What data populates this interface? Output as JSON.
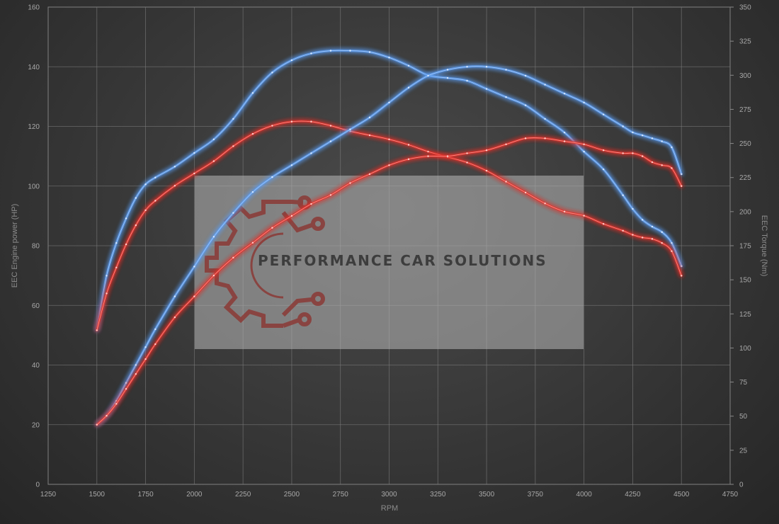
{
  "chart_data": {
    "type": "line",
    "xlabel": "RPM",
    "ylabel": "EEC Engine power (HP)",
    "y2label": "EEC Torque (Nm)",
    "xlim": [
      1250,
      4750
    ],
    "ylim": [
      0,
      160
    ],
    "y2lim": [
      0,
      350
    ],
    "x_ticks": [
      1250,
      1500,
      1750,
      2000,
      2250,
      2500,
      2750,
      3000,
      3250,
      3500,
      3750,
      4000,
      4250,
      4500,
      4750
    ],
    "y_ticks": [
      0,
      20,
      40,
      60,
      80,
      100,
      120,
      140,
      160
    ],
    "y2_ticks": [
      0,
      25,
      50,
      75,
      100,
      125,
      150,
      175,
      200,
      225,
      250,
      275,
      300,
      325,
      350
    ],
    "grid": true,
    "series": [
      {
        "axis": "right",
        "color": "#5b9cf0",
        "x": [
          1500,
          1550,
          1600,
          1650,
          1700,
          1750,
          1800,
          1900,
          2000,
          2100,
          2200,
          2300,
          2400,
          2500,
          2600,
          2700,
          2800,
          2900,
          3000,
          3100,
          3200,
          3300,
          3400,
          3500,
          3600,
          3700,
          3800,
          3900,
          4000,
          4100,
          4200,
          4250,
          4300,
          4350,
          4400,
          4450,
          4500
        ],
        "values": [
          113,
          153,
          177,
          195,
          210,
          220,
          225,
          233,
          243,
          253,
          268,
          287,
          302,
          311,
          316,
          318,
          318,
          317,
          313,
          307,
          300,
          298,
          296,
          290,
          284,
          278,
          268,
          258,
          244,
          231,
          212,
          202,
          194,
          189,
          185,
          177,
          160
        ]
      },
      {
        "axis": "right",
        "color": "#e0302c",
        "x": [
          1500,
          1550,
          1600,
          1650,
          1700,
          1750,
          1800,
          1900,
          2000,
          2100,
          2200,
          2300,
          2400,
          2500,
          2600,
          2700,
          2800,
          2900,
          3000,
          3100,
          3200,
          3300,
          3400,
          3500,
          3600,
          3700,
          3800,
          3900,
          4000,
          4100,
          4200,
          4250,
          4300,
          4350,
          4400,
          4450,
          4500
        ],
        "values": [
          113,
          140,
          159,
          176,
          190,
          201,
          208,
          219,
          228,
          237,
          248,
          257,
          263,
          266,
          266,
          263,
          259,
          256,
          253,
          249,
          244,
          240,
          236,
          230,
          222,
          214,
          206,
          200,
          197,
          191,
          186,
          183,
          181,
          180,
          177,
          171,
          153
        ]
      },
      {
        "axis": "left",
        "color": "#5b9cf0",
        "x": [
          1500,
          1550,
          1600,
          1650,
          1700,
          1750,
          1800,
          1900,
          2000,
          2100,
          2200,
          2300,
          2400,
          2500,
          2600,
          2700,
          2800,
          2900,
          3000,
          3100,
          3200,
          3300,
          3400,
          3500,
          3600,
          3700,
          3800,
          3900,
          4000,
          4100,
          4200,
          4250,
          4300,
          4350,
          4400,
          4450,
          4500
        ],
        "values": [
          20,
          23,
          28,
          34,
          40,
          46,
          52,
          63,
          73,
          83,
          91,
          98,
          103,
          107,
          111,
          115,
          119,
          123,
          128,
          133,
          137,
          139,
          140,
          140,
          139,
          137,
          134,
          131,
          128,
          124,
          120,
          118,
          117,
          116,
          115,
          113,
          104
        ]
      },
      {
        "axis": "left",
        "color": "#e0302c",
        "x": [
          1500,
          1550,
          1600,
          1650,
          1700,
          1750,
          1800,
          1900,
          2000,
          2100,
          2200,
          2300,
          2400,
          2500,
          2600,
          2700,
          2800,
          2900,
          3000,
          3100,
          3200,
          3300,
          3400,
          3500,
          3600,
          3700,
          3800,
          3900,
          4000,
          4100,
          4200,
          4250,
          4300,
          4350,
          4400,
          4450,
          4500
        ],
        "values": [
          20,
          23,
          27,
          32,
          37,
          42,
          47,
          56,
          63,
          70,
          76,
          81,
          86,
          90,
          94,
          97,
          101,
          104,
          107,
          109,
          110,
          110,
          111,
          112,
          114,
          116,
          116,
          115,
          114,
          112,
          111,
          111,
          110,
          108,
          107,
          106,
          100
        ]
      }
    ]
  },
  "watermark": {
    "text": "PERFORMANCE CAR SOLUTIONS",
    "logo_icon": "gear-circuit-icon",
    "logo_color": "#8b3a36"
  }
}
